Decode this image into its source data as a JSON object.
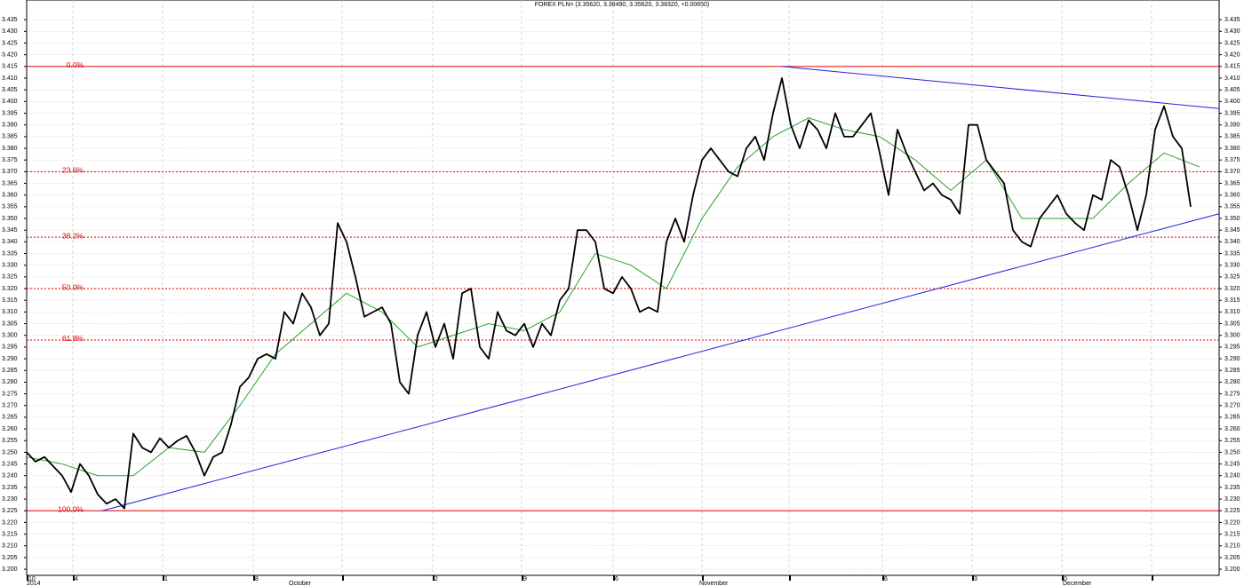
{
  "chart_data": {
    "type": "line",
    "title": "FOREX PLN= (3.35620, 3.38490, 3.35620, 3.38320, +0.00650)",
    "ylim": [
      3.197,
      3.44
    ],
    "yticks": [
      {
        "value": 3.2,
        "label": "3.200"
      },
      3.205,
      {
        "value": 3.21,
        "label": "3.210"
      },
      3.215,
      {
        "value": 3.22,
        "label": "3.220"
      },
      3.225,
      {
        "value": 3.23,
        "label": "3.230"
      },
      3.235,
      {
        "value": 3.24,
        "label": "3.240"
      },
      3.245,
      {
        "value": 3.25,
        "label": "3.250"
      },
      3.255,
      {
        "value": 3.26,
        "label": "3.260"
      },
      3.265,
      {
        "value": 3.27,
        "label": "3.270"
      },
      3.275,
      {
        "value": 3.28,
        "label": "3.280"
      },
      3.285,
      {
        "value": 3.29,
        "label": "3.290"
      },
      3.295,
      {
        "value": 3.3,
        "label": "3.300"
      },
      3.305,
      {
        "value": 3.31,
        "label": "3.310"
      },
      3.315,
      {
        "value": 3.32,
        "label": "3.320"
      },
      3.325,
      {
        "value": 3.33,
        "label": "3.330"
      },
      3.335,
      {
        "value": 3.34,
        "label": "3.340"
      },
      3.345,
      {
        "value": 3.35,
        "label": "3.350"
      },
      3.355,
      {
        "value": 3.36,
        "label": "3.360"
      },
      3.365,
      {
        "value": 3.37,
        "label": "3.370"
      },
      3.375,
      {
        "value": 3.38,
        "label": "3.380"
      },
      3.385,
      {
        "value": 3.39,
        "label": "3.390"
      },
      3.395,
      {
        "value": 3.4,
        "label": "3.400"
      },
      3.405,
      {
        "value": 3.41,
        "label": "3.410"
      },
      3.415,
      {
        "value": 3.42,
        "label": "3.420"
      },
      3.425,
      {
        "value": 3.43,
        "label": "3.430"
      },
      3.435
    ],
    "grid": true,
    "week_labels": [
      "10",
      "4",
      "1",
      "8",
      null,
      "2",
      "9",
      "6",
      null,
      null,
      "6",
      "3",
      "0",
      null
    ],
    "period_labels": [
      "2014",
      "October",
      "November",
      "December"
    ],
    "series": [
      {
        "name": "price",
        "color": "#000000",
        "values": [
          3.25,
          3.246,
          3.248,
          3.244,
          3.24,
          3.233,
          3.245,
          3.24,
          3.232,
          3.228,
          3.23,
          3.226,
          3.258,
          3.252,
          3.25,
          3.256,
          3.252,
          3.255,
          3.257,
          3.25,
          3.24,
          3.248,
          3.25,
          3.262,
          3.278,
          3.282,
          3.29,
          3.292,
          3.29,
          3.31,
          3.305,
          3.318,
          3.312,
          3.3,
          3.305,
          3.348,
          3.34,
          3.325,
          3.308,
          3.31,
          3.312,
          3.305,
          3.28,
          3.275,
          3.3,
          3.31,
          3.295,
          3.305,
          3.29,
          3.318,
          3.32,
          3.295,
          3.29,
          3.31,
          3.302,
          3.3,
          3.305,
          3.295,
          3.305,
          3.3,
          3.315,
          3.32,
          3.345,
          3.345,
          3.34,
          3.32,
          3.318,
          3.325,
          3.32,
          3.31,
          3.312,
          3.31,
          3.34,
          3.35,
          3.34,
          3.36,
          3.375,
          3.38,
          3.375,
          3.37,
          3.368,
          3.38,
          3.385,
          3.375,
          3.395,
          3.41,
          3.39,
          3.38,
          3.392,
          3.388,
          3.38,
          3.395,
          3.385,
          3.385,
          3.39,
          3.395,
          3.378,
          3.36,
          3.388,
          3.378,
          3.37,
          3.362,
          3.365,
          3.36,
          3.358,
          3.352,
          3.39,
          3.39,
          3.375,
          3.37,
          3.365,
          3.345,
          3.34,
          3.338,
          3.35,
          3.355,
          3.36,
          3.352,
          3.348,
          3.345,
          3.36,
          3.358,
          3.375,
          3.372,
          3.36,
          3.345,
          3.36,
          3.388,
          3.398,
          3.385,
          3.38,
          3.355
        ]
      },
      {
        "name": "moving-average",
        "color": "#2ca02c",
        "values": [
          3.248,
          3.245,
          3.24,
          3.24,
          3.252,
          3.25,
          3.27,
          3.292,
          3.305,
          3.318,
          3.31,
          3.295,
          3.3,
          3.305,
          3.302,
          3.31,
          3.335,
          3.33,
          3.32,
          3.35,
          3.372,
          3.385,
          3.393,
          3.388,
          3.385,
          3.375,
          3.362,
          3.375,
          3.35,
          3.35,
          3.35,
          3.365,
          3.378,
          3.372
        ]
      }
    ],
    "fib_levels": [
      {
        "label": "0.0%",
        "value": 3.415
      },
      {
        "label": "23.6%",
        "value": 3.37
      },
      {
        "label": "38.2%",
        "value": 3.342
      },
      {
        "label": "50.0%",
        "value": 3.32
      },
      {
        "label": "61.8%",
        "value": 3.298
      },
      {
        "label": "100.0%",
        "value": 3.225
      }
    ],
    "trendlines": [
      {
        "color": "#2020e0",
        "values": [
          3.225,
          3.352
        ]
      },
      {
        "color": "#2020e0",
        "values": [
          3.415,
          3.397
        ]
      }
    ],
    "fib_color": "#e00000"
  }
}
